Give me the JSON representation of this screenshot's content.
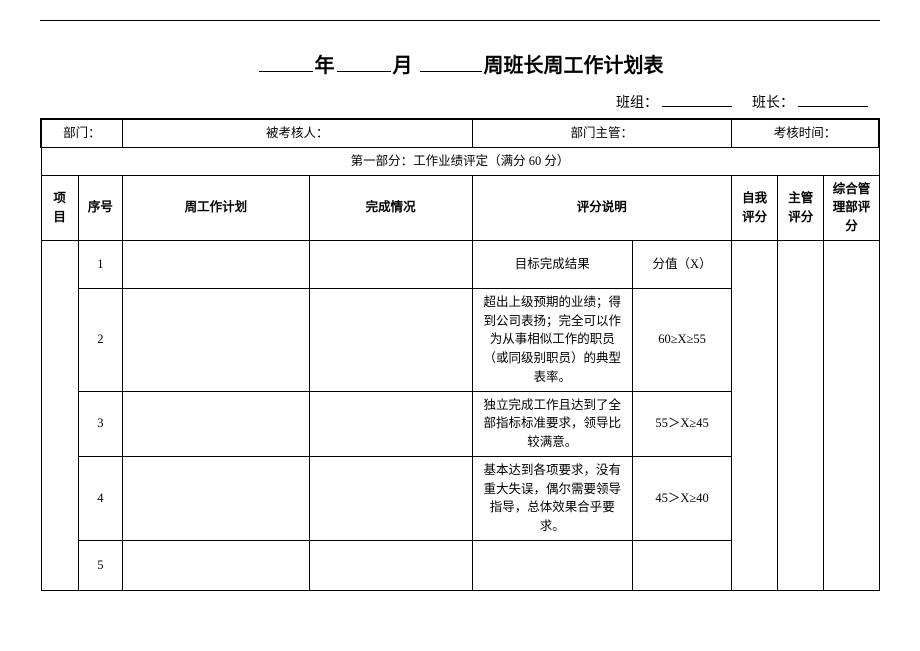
{
  "title": {
    "part_year": "年",
    "part_month": "月",
    "part_rest": "周班长周工作计划表"
  },
  "subhead": {
    "team_label": "班组：",
    "leader_label": "班长："
  },
  "meta_row": {
    "dept_label": "部门：",
    "assessee_label": "被考核人：",
    "dept_head_label": "部门主管：",
    "assess_time_label": "考核时间："
  },
  "section1_title": "第一部分：工作业绩评定（满分 60 分）",
  "columns": {
    "proj": "项目",
    "num": "序号",
    "plan": "周工作计划",
    "done": "完成情况",
    "desc": "评分说明",
    "self": "自我评分",
    "mgr": "主管评分",
    "dept": "综合管理部评分"
  },
  "rows": [
    {
      "num": "1",
      "desc": "目标完成结果",
      "score": "分值（X）"
    },
    {
      "num": "2",
      "desc": "超出上级预期的业绩；得到公司表扬；完全可以作为从事相似工作的职员（或同级别职员）的典型表率。",
      "score": "60≥X≥55"
    },
    {
      "num": "3",
      "desc": "独立完成工作且达到了全部指标标准要求，领导比较满意。",
      "score": "55＞X≥45"
    },
    {
      "num": "4",
      "desc": "基本达到各项要求，没有重大失误，偶尔需要领导指导，总体效果合乎要求。",
      "score": "45＞X≥40"
    },
    {
      "num": "5",
      "desc": "",
      "score": ""
    }
  ],
  "row_heights": [
    "48px",
    "82px",
    "62px",
    "62px",
    "50px"
  ]
}
